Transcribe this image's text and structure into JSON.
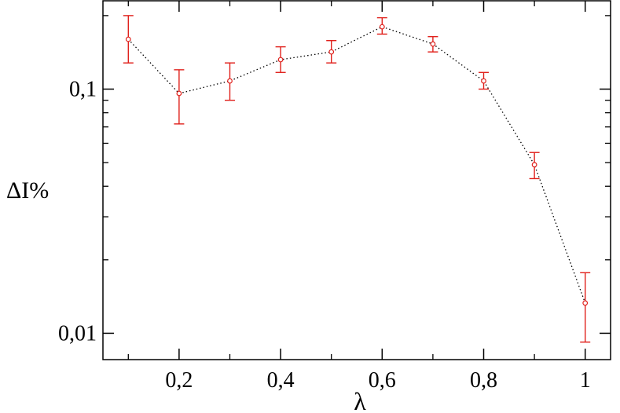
{
  "chart_data": {
    "type": "scatter",
    "title": "",
    "xlabel": "λ",
    "ylabel": "ΔI%",
    "xlim": [
      0.05,
      1.05
    ],
    "ylim": [
      0.0078,
      0.23
    ],
    "yscale": "log",
    "grid": false,
    "legend": "none",
    "x_ticks": [
      {
        "value": 0.2,
        "label": "0,2"
      },
      {
        "value": 0.4,
        "label": "0,4"
      },
      {
        "value": 0.6,
        "label": "0,6"
      },
      {
        "value": 0.8,
        "label": "0,8"
      },
      {
        "value": 1.0,
        "label": "1"
      }
    ],
    "y_ticks": [
      {
        "value": 0.1,
        "label": "0,1"
      },
      {
        "value": 0.01,
        "label": "0,01"
      }
    ],
    "series": [
      {
        "color": "#e0201b",
        "line_color": "#000000",
        "line_style": "dotted",
        "points": [
          {
            "x": 0.1,
            "y": 0.16,
            "err_low": 0.128,
            "err_high": 0.2
          },
          {
            "x": 0.2,
            "y": 0.096,
            "err_low": 0.072,
            "err_high": 0.12
          },
          {
            "x": 0.3,
            "y": 0.108,
            "err_low": 0.09,
            "err_high": 0.128
          },
          {
            "x": 0.4,
            "y": 0.132,
            "err_low": 0.117,
            "err_high": 0.149
          },
          {
            "x": 0.5,
            "y": 0.142,
            "err_low": 0.128,
            "err_high": 0.158
          },
          {
            "x": 0.6,
            "y": 0.18,
            "err_low": 0.168,
            "err_high": 0.196
          },
          {
            "x": 0.7,
            "y": 0.153,
            "err_low": 0.142,
            "err_high": 0.164
          },
          {
            "x": 0.8,
            "y": 0.108,
            "err_low": 0.1,
            "err_high": 0.117
          },
          {
            "x": 0.9,
            "y": 0.049,
            "err_low": 0.043,
            "err_high": 0.055
          },
          {
            "x": 1.0,
            "y": 0.0133,
            "err_low": 0.0092,
            "err_high": 0.0177
          }
        ]
      }
    ]
  }
}
